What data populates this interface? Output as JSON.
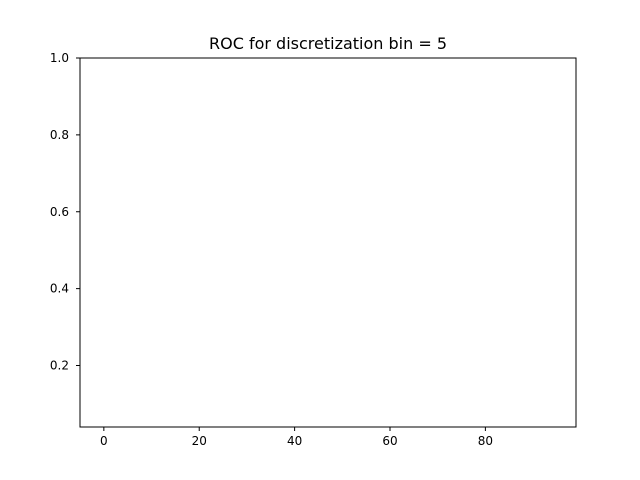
{
  "chart_data": {
    "type": "line",
    "title": "ROC for discretization bin = 5",
    "xlabel": "",
    "ylabel": "",
    "xlim": [
      -5,
      99
    ],
    "ylim": [
      0.04,
      1.0
    ],
    "x_ticks": [
      0,
      20,
      40,
      60,
      80
    ],
    "y_ticks": [
      0.2,
      0.4,
      0.6,
      0.8,
      1.0
    ],
    "x_tick_labels": [
      "0",
      "20",
      "40",
      "60",
      "80"
    ],
    "y_tick_labels": [
      "0.2",
      "0.4",
      "0.6",
      "0.8",
      "1.0"
    ],
    "grid": false,
    "series": []
  }
}
